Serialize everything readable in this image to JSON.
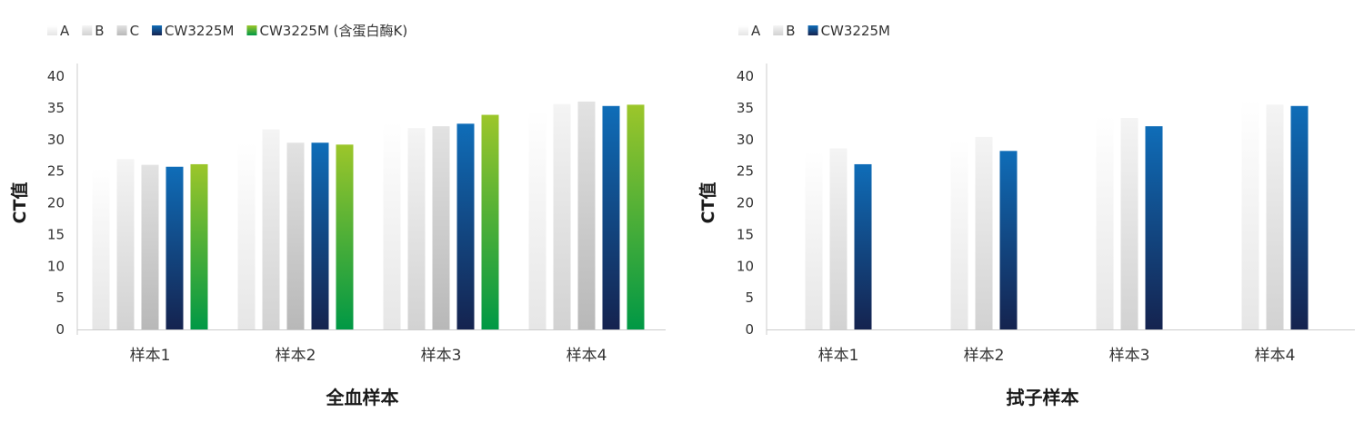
{
  "chart_data": [
    {
      "type": "bar",
      "title": "",
      "xlabel": "全血样本",
      "ylabel": "CT值",
      "ylim": [
        0,
        40
      ],
      "yticks": [
        0,
        5,
        10,
        15,
        20,
        25,
        30,
        35,
        40
      ],
      "categories": [
        "样本1",
        "样本2",
        "样本3",
        "样本4"
      ],
      "legend_position": "top-left",
      "series": [
        {
          "name": "A",
          "values": [
            25.6,
            29.5,
            32.8,
            34.7
          ]
        },
        {
          "name": "B",
          "values": [
            26.9,
            31.6,
            31.8,
            35.6
          ]
        },
        {
          "name": "C",
          "values": [
            26.0,
            29.5,
            32.1,
            36.0
          ]
        },
        {
          "name": "CW3225M",
          "values": [
            25.7,
            29.5,
            32.5,
            35.3
          ]
        },
        {
          "name": "CW3225M (含蛋白酶K)",
          "values": [
            26.1,
            29.2,
            33.9,
            35.5
          ]
        }
      ]
    },
    {
      "type": "bar",
      "title": "",
      "xlabel": "拭子样本",
      "ylabel": "CT值",
      "ylim": [
        0,
        40
      ],
      "yticks": [
        0,
        5,
        10,
        15,
        20,
        25,
        30,
        35,
        40
      ],
      "categories": [
        "样本1",
        "样本2",
        "样本3",
        "样本4"
      ],
      "legend_position": "top-left",
      "series": [
        {
          "name": "A",
          "values": [
            28.2,
            29.9,
            33.8,
            36.3
          ]
        },
        {
          "name": "B",
          "values": [
            28.6,
            30.4,
            33.4,
            35.5
          ]
        },
        {
          "name": "CW3225M",
          "values": [
            26.1,
            28.2,
            32.1,
            35.3
          ]
        }
      ]
    }
  ],
  "series_colors": {
    "A": [
      "#ffffff",
      "#e6e6e6"
    ],
    "B": [
      "#f4f4f4",
      "#d2d2d2"
    ],
    "C": [
      "#e2e2e2",
      "#b8b8b8"
    ],
    "CW3225M": [
      "#0f6db8",
      "#15234f"
    ],
    "CW3225M (含蛋白酶K)": [
      "#9cc62a",
      "#009845"
    ]
  }
}
